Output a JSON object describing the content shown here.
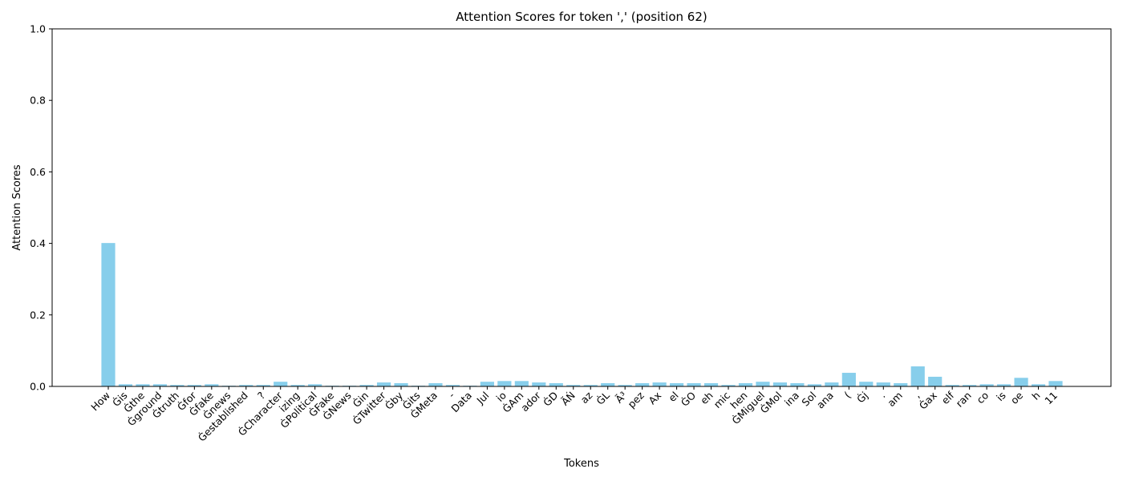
{
  "chart_data": {
    "type": "bar",
    "title": "Attention Scores for token ',' (position 62)",
    "xlabel": "Tokens",
    "ylabel": "Attention Scores",
    "ylim": [
      0,
      1.0
    ],
    "yticks": [
      "0.0",
      "0.2",
      "0.4",
      "0.6",
      "0.8",
      "1.0"
    ],
    "grid": false,
    "bar_color": "#87ceeb",
    "categories": [
      "How",
      "Ġis",
      "Ġthe",
      "Ġground",
      "Ġtruth",
      "Ġfor",
      "Ġfake",
      "Ġnews",
      "Ġestablished",
      "?",
      "ĠCharacter",
      "izing",
      "ĠPolitical",
      "ĠFake",
      "ĠNews",
      "Ġin",
      "ĠTwitter",
      "Ġby",
      "Ġits",
      "ĠMeta",
      "-",
      "Data",
      "Jul",
      "io",
      "ĠAm",
      "ador",
      "ĠD",
      "ÃŃ",
      "az",
      "ĠL",
      "Ã³",
      "pez",
      "Ax",
      "el",
      "ĠO",
      "eh",
      "mic",
      "hen",
      "ĠMiguel",
      "ĠMol",
      "ina",
      "Sol",
      "ana",
      "(",
      "Ġj",
      ".",
      "am",
      ",",
      "Ġax",
      "elf",
      "ran",
      "co",
      "is",
      "oe",
      "h",
      "11"
    ],
    "values": [
      0.401,
      0.006,
      0.006,
      0.006,
      0.004,
      0.004,
      0.006,
      0.002,
      0.004,
      0.004,
      0.013,
      0.004,
      0.006,
      0.002,
      0.002,
      0.004,
      0.011,
      0.009,
      0.002,
      0.009,
      0.004,
      0.002,
      0.013,
      0.015,
      0.015,
      0.011,
      0.009,
      0.004,
      0.004,
      0.009,
      0.004,
      0.009,
      0.011,
      0.009,
      0.009,
      0.009,
      0.004,
      0.009,
      0.013,
      0.011,
      0.009,
      0.006,
      0.011,
      0.038,
      0.013,
      0.011,
      0.009,
      0.056,
      0.027,
      0.004,
      0.004,
      0.006,
      0.006,
      0.024,
      0.006,
      0.015
    ]
  }
}
